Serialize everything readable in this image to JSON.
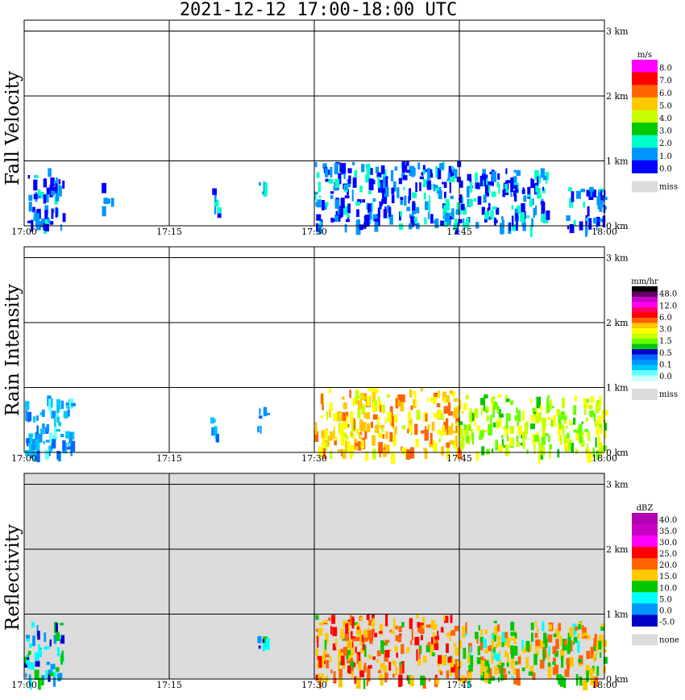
{
  "title": "2021-12-12   17:00-18:00 UTC",
  "colors": {
    "background": "#ffffff",
    "missing": "#dcdcdc",
    "grid": "#000000"
  },
  "chart_data": [
    {
      "type": "heatmap",
      "ylabel": "Fall Velocity",
      "x_ticks": [
        "17:00",
        "17:15",
        "17:30",
        "17:45",
        "18:00"
      ],
      "y_ticks": [
        "0 km",
        "1 km",
        "2 km",
        "3 km"
      ],
      "xlim": [
        "17:00",
        "18:00"
      ],
      "ylim_km": [
        0,
        3.2
      ],
      "grid": true,
      "legend_position": "right",
      "colorbar": {
        "unit": "m/s",
        "labels": [
          "8.0",
          "7.0",
          "6.0",
          "5.0",
          "4.0",
          "3.0",
          "2.0",
          "1.0",
          "0.0"
        ],
        "colors": [
          "#ff00ff",
          "#ff0000",
          "#ff6400",
          "#ffc800",
          "#c8ff00",
          "#00c800",
          "#00ffc8",
          "#0096ff",
          "#0000ff"
        ],
        "missing_label": "miss"
      },
      "background": "#ffffff",
      "echo_regions": [
        {
          "t0": "17:00",
          "t1": "17:04",
          "h0": 0,
          "h1": 0.9,
          "level": "1.0"
        },
        {
          "t0": "17:08",
          "t1": "17:09",
          "h0": 0.3,
          "h1": 0.7,
          "level": "1.0"
        },
        {
          "t0": "17:19",
          "t1": "17:20",
          "h0": 0.2,
          "h1": 0.6,
          "level": "1.0"
        },
        {
          "t0": "17:24",
          "t1": "17:25",
          "h0": 0.4,
          "h1": 0.7,
          "level": "1.0"
        },
        {
          "t0": "17:30",
          "t1": "17:45",
          "h0": 0,
          "h1": 1.0,
          "level": "1.0"
        },
        {
          "t0": "17:45",
          "t1": "17:54",
          "h0": 0,
          "h1": 0.9,
          "level": "1.0"
        },
        {
          "t0": "17:56",
          "t1": "18:00",
          "h0": 0,
          "h1": 0.6,
          "level": "1.0"
        }
      ]
    },
    {
      "type": "heatmap",
      "ylabel": "Rain Intensity",
      "x_ticks": [
        "17:00",
        "17:15",
        "17:30",
        "17:45",
        "18:00"
      ],
      "y_ticks": [
        "0 km",
        "1 km",
        "2 km",
        "3 km"
      ],
      "xlim": [
        "17:00",
        "18:00"
      ],
      "ylim_km": [
        0,
        3.2
      ],
      "grid": true,
      "legend_position": "right",
      "colorbar": {
        "unit": "mm/hr",
        "labels": [
          "48.0",
          "12.0",
          "6.0",
          "3.0",
          "1.5",
          "0.5",
          "0.1",
          "0.0"
        ],
        "colors": [
          "#000000",
          "#640064",
          "#c800c8",
          "#ff00ff",
          "#ff0064",
          "#ff0000",
          "#ff6400",
          "#ffc800",
          "#ffff00",
          "#c8ff00",
          "#64ff00",
          "#00c800",
          "#0000c8",
          "#0064ff",
          "#0096ff",
          "#00c8ff",
          "#64ffff",
          "#c8ffff"
        ],
        "missing_label": "miss"
      },
      "background": "#ffffff",
      "echo_regions": [
        {
          "t0": "17:00",
          "t1": "17:05",
          "h0": 0,
          "h1": 0.9,
          "level": "0.1"
        },
        {
          "t0": "17:19",
          "t1": "17:20",
          "h0": 0.2,
          "h1": 0.6,
          "level": "0.1"
        },
        {
          "t0": "17:24",
          "t1": "17:25",
          "h0": 0.4,
          "h1": 0.7,
          "level": "0.1"
        },
        {
          "t0": "17:30",
          "t1": "17:45",
          "h0": 0,
          "h1": 1.0,
          "level": "3.0"
        },
        {
          "t0": "17:45",
          "t1": "18:00",
          "h0": 0,
          "h1": 0.9,
          "level": "1.5"
        }
      ]
    },
    {
      "type": "heatmap",
      "ylabel": "Reflectivity",
      "x_ticks": [
        "17:00",
        "17:15",
        "17:30",
        "17:45",
        "18:00"
      ],
      "y_ticks": [
        "0 km",
        "1 km",
        "2 km",
        "3 km"
      ],
      "xlim": [
        "17:00",
        "18:00"
      ],
      "ylim_km": [
        0,
        3.2
      ],
      "grid": true,
      "legend_position": "right",
      "colorbar": {
        "unit": "dBZ",
        "labels": [
          "40.0",
          "35.0",
          "30.0",
          "25.0",
          "20.0",
          "15.0",
          "10.0",
          "5.0",
          "0.0",
          "-5.0"
        ],
        "colors": [
          "#b400b4",
          "#c800c8",
          "#ff00ff",
          "#ff0000",
          "#ff6400",
          "#ffc800",
          "#00c800",
          "#00ffff",
          "#0096ff",
          "#0000c8"
        ],
        "missing_label": "none"
      },
      "background": "#dcdcdc",
      "echo_regions": [
        {
          "t0": "17:00",
          "t1": "17:04",
          "h0": 0,
          "h1": 0.9,
          "level": "5.0"
        },
        {
          "t0": "17:24",
          "t1": "17:25",
          "h0": 0.4,
          "h1": 0.7,
          "level": "5.0"
        },
        {
          "t0": "17:30",
          "t1": "17:45",
          "h0": 0,
          "h1": 1.0,
          "level": "20.0"
        },
        {
          "t0": "17:45",
          "t1": "18:00",
          "h0": 0,
          "h1": 0.9,
          "level": "15.0"
        }
      ]
    }
  ]
}
